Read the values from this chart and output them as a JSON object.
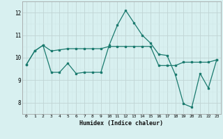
{
  "line1_x": [
    0,
    1,
    2,
    3,
    4,
    5,
    6,
    7,
    8,
    9,
    10,
    11,
    12,
    13,
    14,
    15,
    16,
    17,
    18,
    19,
    20,
    21,
    22,
    23
  ],
  "line1_y": [
    9.7,
    10.3,
    10.55,
    10.3,
    10.35,
    10.4,
    10.4,
    10.4,
    10.4,
    10.4,
    10.5,
    10.5,
    10.5,
    10.5,
    10.5,
    10.5,
    9.65,
    9.65,
    9.65,
    9.8,
    9.8,
    9.8,
    9.8,
    9.9
  ],
  "line2_x": [
    0,
    1,
    2,
    3,
    4,
    5,
    6,
    7,
    8,
    9,
    10,
    11,
    12,
    13,
    14,
    15,
    16,
    17,
    18,
    19,
    20,
    21,
    22,
    23
  ],
  "line2_y": [
    9.7,
    10.3,
    10.55,
    9.35,
    9.35,
    9.75,
    9.3,
    9.35,
    9.35,
    9.35,
    10.55,
    11.45,
    12.1,
    11.55,
    11.0,
    10.65,
    10.15,
    10.1,
    9.25,
    7.95,
    7.8,
    9.3,
    8.65,
    9.9
  ],
  "color": "#1a7a6e",
  "bg_color": "#d8f0f0",
  "grid_minor_color": "#d0e8e8",
  "grid_major_color": "#c0d4d4",
  "xlabel": "Humidex (Indice chaleur)",
  "ylim": [
    7.5,
    12.5
  ],
  "xlim": [
    -0.5,
    23.5
  ],
  "yticks": [
    8,
    9,
    10,
    11,
    12
  ],
  "xticks": [
    0,
    1,
    2,
    3,
    4,
    5,
    6,
    7,
    8,
    9,
    10,
    11,
    12,
    13,
    14,
    15,
    16,
    17,
    18,
    19,
    20,
    21,
    22,
    23
  ]
}
